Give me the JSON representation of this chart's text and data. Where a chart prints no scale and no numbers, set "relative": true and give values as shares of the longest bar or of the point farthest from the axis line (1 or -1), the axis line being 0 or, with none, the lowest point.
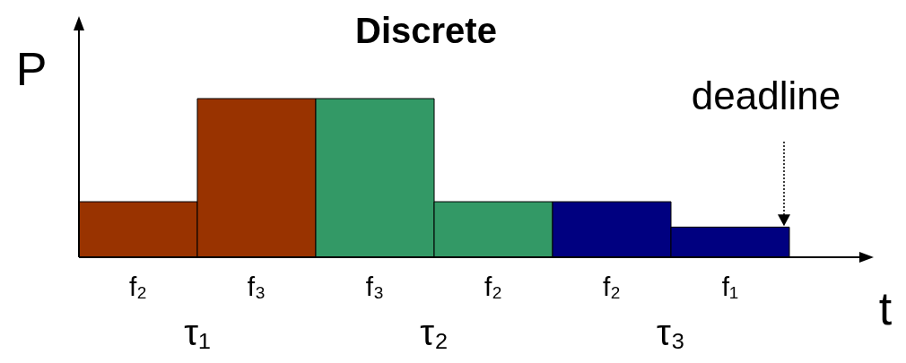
{
  "chart_data": {
    "type": "bar",
    "title": "Discrete",
    "xlabel": "t",
    "ylabel": "P",
    "relative": true,
    "categories": [
      "f₂",
      "f₃",
      "f₃",
      "f₂",
      "f₂",
      "f₁"
    ],
    "values": [
      0.35,
      1,
      1,
      0.35,
      0.35,
      0.19
    ],
    "colors": [
      "#993300",
      "#993300",
      "#339966",
      "#339966",
      "#000080",
      "#000080"
    ],
    "annotations": [
      "τ₁",
      "τ₂",
      "τ₃",
      "deadline"
    ]
  }
}
